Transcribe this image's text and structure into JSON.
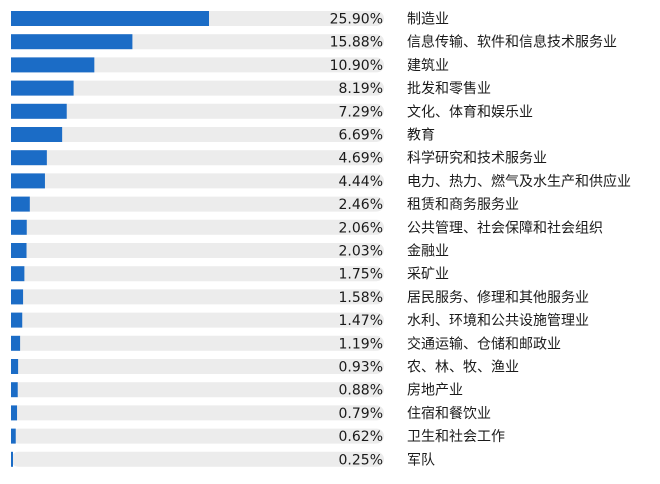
{
  "chart_data": {
    "type": "bar",
    "orientation": "horizontal",
    "title": "",
    "xlabel": "",
    "ylabel": "",
    "value_suffix": "%",
    "xlim": [
      0,
      50
    ],
    "grid": false,
    "legend": "none",
    "colors": {
      "bar": "#1b6cc6",
      "track": "#ececec",
      "text": "#1a1a1a"
    },
    "categories": [
      "制造业",
      "信息传输、软件和信息技术服务业",
      "建筑业",
      "批发和零售业",
      "文化、体育和娱乐业",
      "教育",
      "科学研究和技术服务业",
      "电力、热力、燃气及水生产和供应业",
      "租赁和商务服务业",
      "公共管理、社会保障和社会组织",
      "金融业",
      "采矿业",
      "居民服务、修理和其他服务业",
      "水利、环境和公共设施管理业",
      "交通运输、仓储和邮政业",
      "农、林、牧、渔业",
      "房地产业",
      "住宿和餐饮业",
      "卫生和社会工作",
      "军队"
    ],
    "values": [
      25.9,
      15.88,
      10.9,
      8.19,
      7.29,
      6.69,
      4.69,
      4.44,
      2.46,
      2.06,
      2.03,
      1.75,
      1.58,
      1.47,
      1.19,
      0.93,
      0.88,
      0.79,
      0.62,
      0.25
    ],
    "labels": [
      "25.90%",
      "15.88%",
      "10.90%",
      "8.19%",
      "7.29%",
      "6.69%",
      "4.69%",
      "4.44%",
      "2.46%",
      "2.06%",
      "2.03%",
      "1.75%",
      "1.58%",
      "1.47%",
      "1.19%",
      "0.93%",
      "0.88%",
      "0.79%",
      "0.62%",
      "0.25%"
    ]
  }
}
